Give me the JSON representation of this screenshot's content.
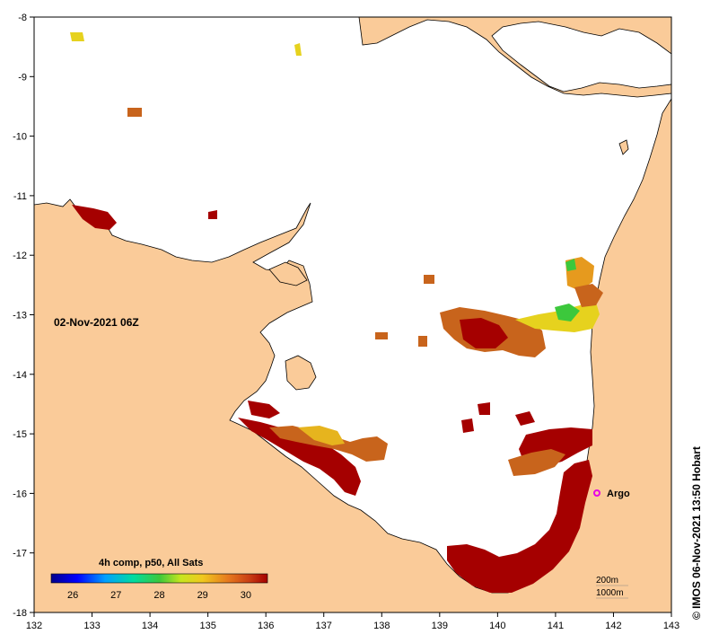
{
  "map": {
    "date_label": "02-Nov-2021 06Z",
    "credit": "© IMOS 06-Nov-2021 13:50 Hobart",
    "argo_label": "Argo",
    "depth_labels": [
      "200m",
      "1000m"
    ],
    "x_ticks": [
      "132",
      "133",
      "134",
      "135",
      "136",
      "137",
      "138",
      "139",
      "140",
      "141",
      "142",
      "143"
    ],
    "y_ticks": [
      "-8",
      "-9",
      "-10",
      "-11",
      "-12",
      "-13",
      "-14",
      "-15",
      "-16",
      "-17",
      "-18"
    ],
    "legend": {
      "title": "4h comp, p50, All Sats",
      "ticks": [
        "26",
        "27",
        "28",
        "29",
        "30"
      ]
    },
    "colors": {
      "land": "#FACB99",
      "water": "#FFFFFF",
      "sst_hot": "#A50000",
      "sst_warm": "#C8641C",
      "sst_mid": "#E69A1E",
      "sst_yellow": "#E6D21E",
      "sst_green": "#3CC83C",
      "argo": "#E600E6"
    }
  }
}
